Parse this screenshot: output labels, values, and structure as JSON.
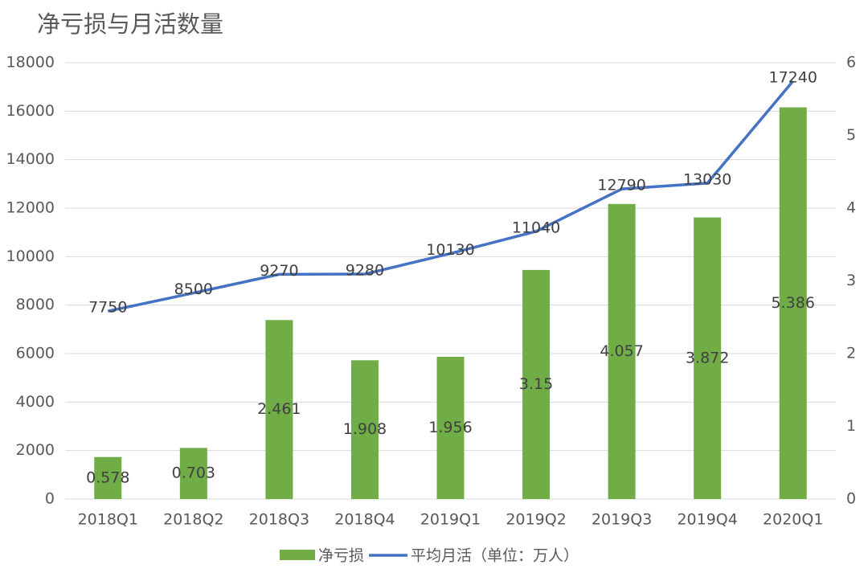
{
  "chart_data": {
    "type": "bar-line",
    "title": "净亏损与月活数量",
    "categories": [
      "2018Q1",
      "2018Q2",
      "2018Q3",
      "2018Q4",
      "2019Q1",
      "2019Q2",
      "2019Q3",
      "2019Q4",
      "2020Q1"
    ],
    "series": [
      {
        "name": "净亏损",
        "type": "bar",
        "axis": "y2",
        "color": "#70ad47",
        "values": [
          0.578,
          0.703,
          2.461,
          1.908,
          1.956,
          3.15,
          4.057,
          3.872,
          5.386
        ]
      },
      {
        "name": "平均月活（单位：万人）",
        "type": "line",
        "axis": "y",
        "color": "#4472c4",
        "values": [
          7750,
          8500,
          9270,
          9280,
          10130,
          11040,
          12790,
          13030,
          17240
        ]
      }
    ],
    "ylim": [
      0,
      18000
    ],
    "yticks": [
      0,
      2000,
      4000,
      6000,
      8000,
      10000,
      12000,
      14000,
      16000,
      18000
    ],
    "y2lim": [
      0,
      6
    ],
    "y2ticks": [
      0,
      1,
      2,
      3,
      4,
      5,
      6
    ],
    "grid": true,
    "legend": "bottom"
  }
}
